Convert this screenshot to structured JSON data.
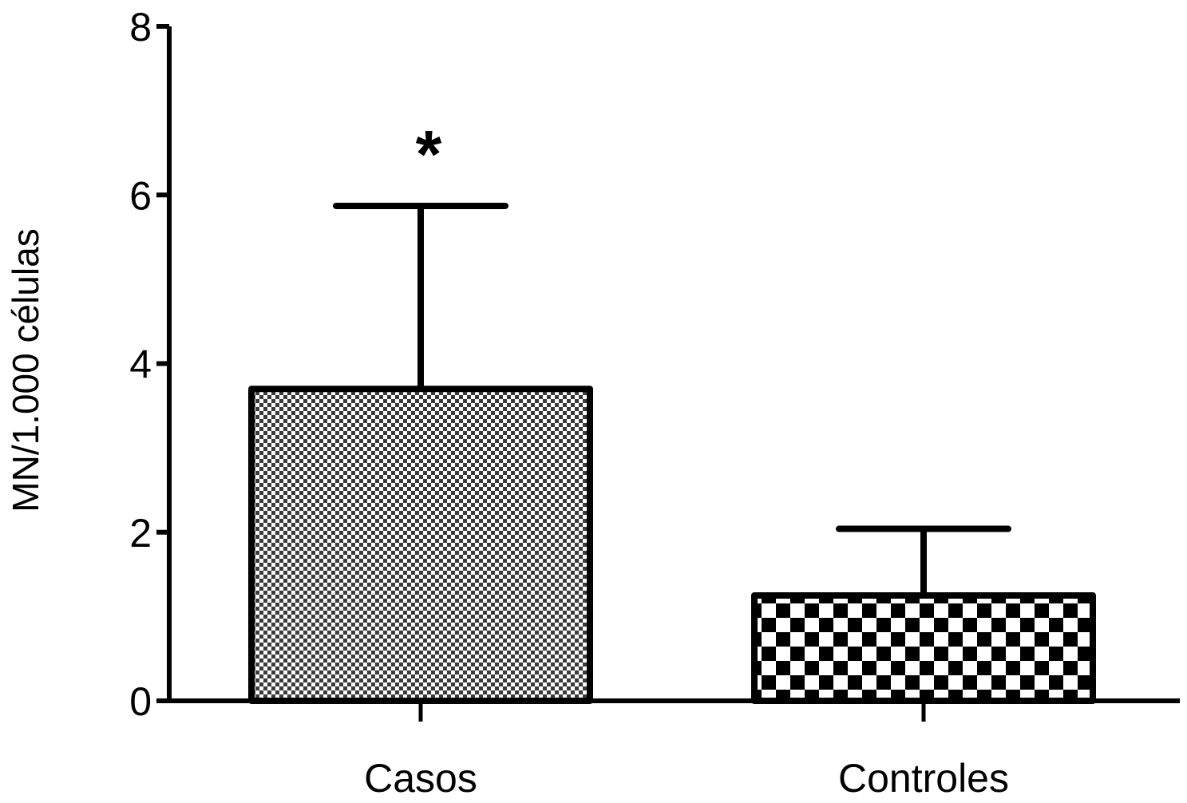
{
  "chart_data": {
    "type": "bar",
    "categories": [
      "Casos",
      "Controles"
    ],
    "values": [
      3.7,
      1.25
    ],
    "error_upper": [
      5.87,
      2.04
    ],
    "ylabel": "MN/1.000 células",
    "xlabel": "",
    "ylim": [
      0,
      8
    ],
    "yticks": [
      "0",
      "2",
      "4",
      "6",
      "8"
    ],
    "annotations": [
      {
        "category": "Casos",
        "text": "*"
      }
    ],
    "fill_patterns": [
      "fine-checker",
      "coarse-checker"
    ],
    "grid": false,
    "legend": "none",
    "colors": {
      "bar_edge": "#000000",
      "pattern_dark": "#000000",
      "pattern_light": "#ffffff"
    }
  }
}
